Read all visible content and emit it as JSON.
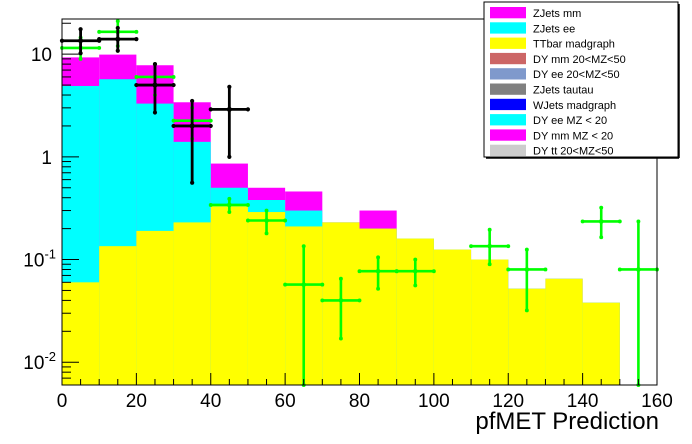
{
  "chart_data": {
    "type": "histogram-stack",
    "xlabel": "pfMET Prediction",
    "ylabel": "",
    "xlim": [
      0,
      160
    ],
    "ylim": [
      0.006,
      22
    ],
    "yscale": "log",
    "grid": false,
    "legend_position": "top-right",
    "bin_edges": [
      0,
      10,
      20,
      30,
      40,
      50,
      60,
      70,
      80,
      90,
      100,
      110,
      120,
      130,
      140,
      150,
      160
    ],
    "x_ticks": [
      "0",
      "20",
      "40",
      "60",
      "80",
      "100",
      "120",
      "140",
      "160"
    ],
    "y_ticks": [
      {
        "value": 0.01,
        "base": "10",
        "exp": "-2"
      },
      {
        "value": 0.1,
        "base": "10",
        "exp": "-1"
      },
      {
        "value": 1,
        "base": "1",
        "exp": ""
      },
      {
        "value": 10,
        "base": "10",
        "exp": ""
      }
    ],
    "stack": [
      {
        "name": "TTbar madgraph",
        "color": "#ffff00",
        "values": [
          0.06,
          0.135,
          0.19,
          0.23,
          0.33,
          0.29,
          0.21,
          0.23,
          0.2,
          0.16,
          0.125,
          0.1,
          0.052,
          0.065,
          0.038,
          0.0
        ]
      },
      {
        "name": "ZJets ee",
        "color": "#00ffff",
        "values": [
          4.9,
          5.7,
          3.3,
          1.4,
          0.5,
          0.38,
          0.3,
          0.23,
          0.2,
          0.16,
          0.125,
          0.1,
          0.052,
          0.065,
          0.038,
          0.0
        ]
      },
      {
        "name": "ZJets mm",
        "color": "#ff00ff",
        "values": [
          9.3,
          9.9,
          7.8,
          3.4,
          0.86,
          0.5,
          0.46,
          0.23,
          0.3,
          0.16,
          0.125,
          0.1,
          0.052,
          0.065,
          0.038,
          0.0
        ]
      }
    ],
    "data_black": {
      "name": "",
      "color": "#000000",
      "points": [
        {
          "x": 5,
          "y": 13.5,
          "xerr": 5,
          "ylo": 10.2,
          "yhi": 17.5
        },
        {
          "x": 15,
          "y": 14.0,
          "xerr": 5,
          "ylo": 10.8,
          "yhi": 18.0
        },
        {
          "x": 25,
          "y": 5.0,
          "xerr": 5,
          "ylo": 2.7,
          "yhi": 8.0
        },
        {
          "x": 35,
          "y": 2.0,
          "xerr": 5,
          "ylo": 0.56,
          "yhi": 3.5
        },
        {
          "x": 45,
          "y": 2.9,
          "xerr": 5,
          "ylo": 1.0,
          "yhi": 4.8
        }
      ]
    },
    "data_green": {
      "name": "",
      "color": "#00ff00",
      "points": [
        {
          "x": 5,
          "y": 11.5,
          "xerr": 5,
          "ylo": 9.0,
          "yhi": 14.5
        },
        {
          "x": 15,
          "y": 16.5,
          "xerr": 5,
          "ylo": 12.0,
          "yhi": 21.0
        },
        {
          "x": 25,
          "y": 6.0,
          "xerr": 5,
          "ylo": 4.0,
          "yhi": 8.0
        },
        {
          "x": 35,
          "y": 2.25,
          "xerr": 5,
          "ylo": 1.5,
          "yhi": 3.0
        },
        {
          "x": 45,
          "y": 0.34,
          "xerr": 5,
          "ylo": 0.29,
          "yhi": 0.39
        },
        {
          "x": 55,
          "y": 0.24,
          "xerr": 5,
          "ylo": 0.18,
          "yhi": 0.3
        },
        {
          "x": 65,
          "y": 0.057,
          "xerr": 5,
          "ylo": 0.006,
          "yhi": 0.135
        },
        {
          "x": 75,
          "y": 0.04,
          "xerr": 5,
          "ylo": 0.017,
          "yhi": 0.065
        },
        {
          "x": 85,
          "y": 0.077,
          "xerr": 5,
          "ylo": 0.052,
          "yhi": 0.105
        },
        {
          "x": 95,
          "y": 0.077,
          "xerr": 5,
          "ylo": 0.056,
          "yhi": 0.1
        },
        {
          "x": 115,
          "y": 0.135,
          "xerr": 5,
          "ylo": 0.09,
          "yhi": 0.195
        },
        {
          "x": 125,
          "y": 0.08,
          "xerr": 5,
          "ylo": 0.032,
          "yhi": 0.125
        },
        {
          "x": 145,
          "y": 0.235,
          "xerr": 5,
          "ylo": 0.165,
          "yhi": 0.32
        },
        {
          "x": 155,
          "y": 0.08,
          "xerr": 5,
          "ylo": 0.006,
          "yhi": 0.235
        }
      ]
    },
    "legend": [
      {
        "label": "ZJets mm",
        "color": "#ff00ff",
        "style": "fill"
      },
      {
        "label": "ZJets ee",
        "color": "#00ffff",
        "style": "fill"
      },
      {
        "label": "TTbar madgraph",
        "color": "#ffff00",
        "style": "fill"
      },
      {
        "label": "DY mm 20<MZ<50",
        "color": "#cc6666",
        "style": "fill"
      },
      {
        "label": "DY ee 20<MZ<50",
        "color": "#7f99cc",
        "style": "fill"
      },
      {
        "label": "ZJets tautau",
        "color": "#808080",
        "style": "fill"
      },
      {
        "label": "WJets madgraph",
        "color": "#0000ff",
        "style": "fill"
      },
      {
        "label": "DY ee MZ < 20",
        "color": "#00ffff",
        "style": "fill"
      },
      {
        "label": "DY mm MZ < 20",
        "color": "#ff00ff",
        "style": "fill"
      },
      {
        "label": "DY tt 20<MZ<50",
        "color": "#cccccc",
        "style": "fill"
      }
    ]
  }
}
